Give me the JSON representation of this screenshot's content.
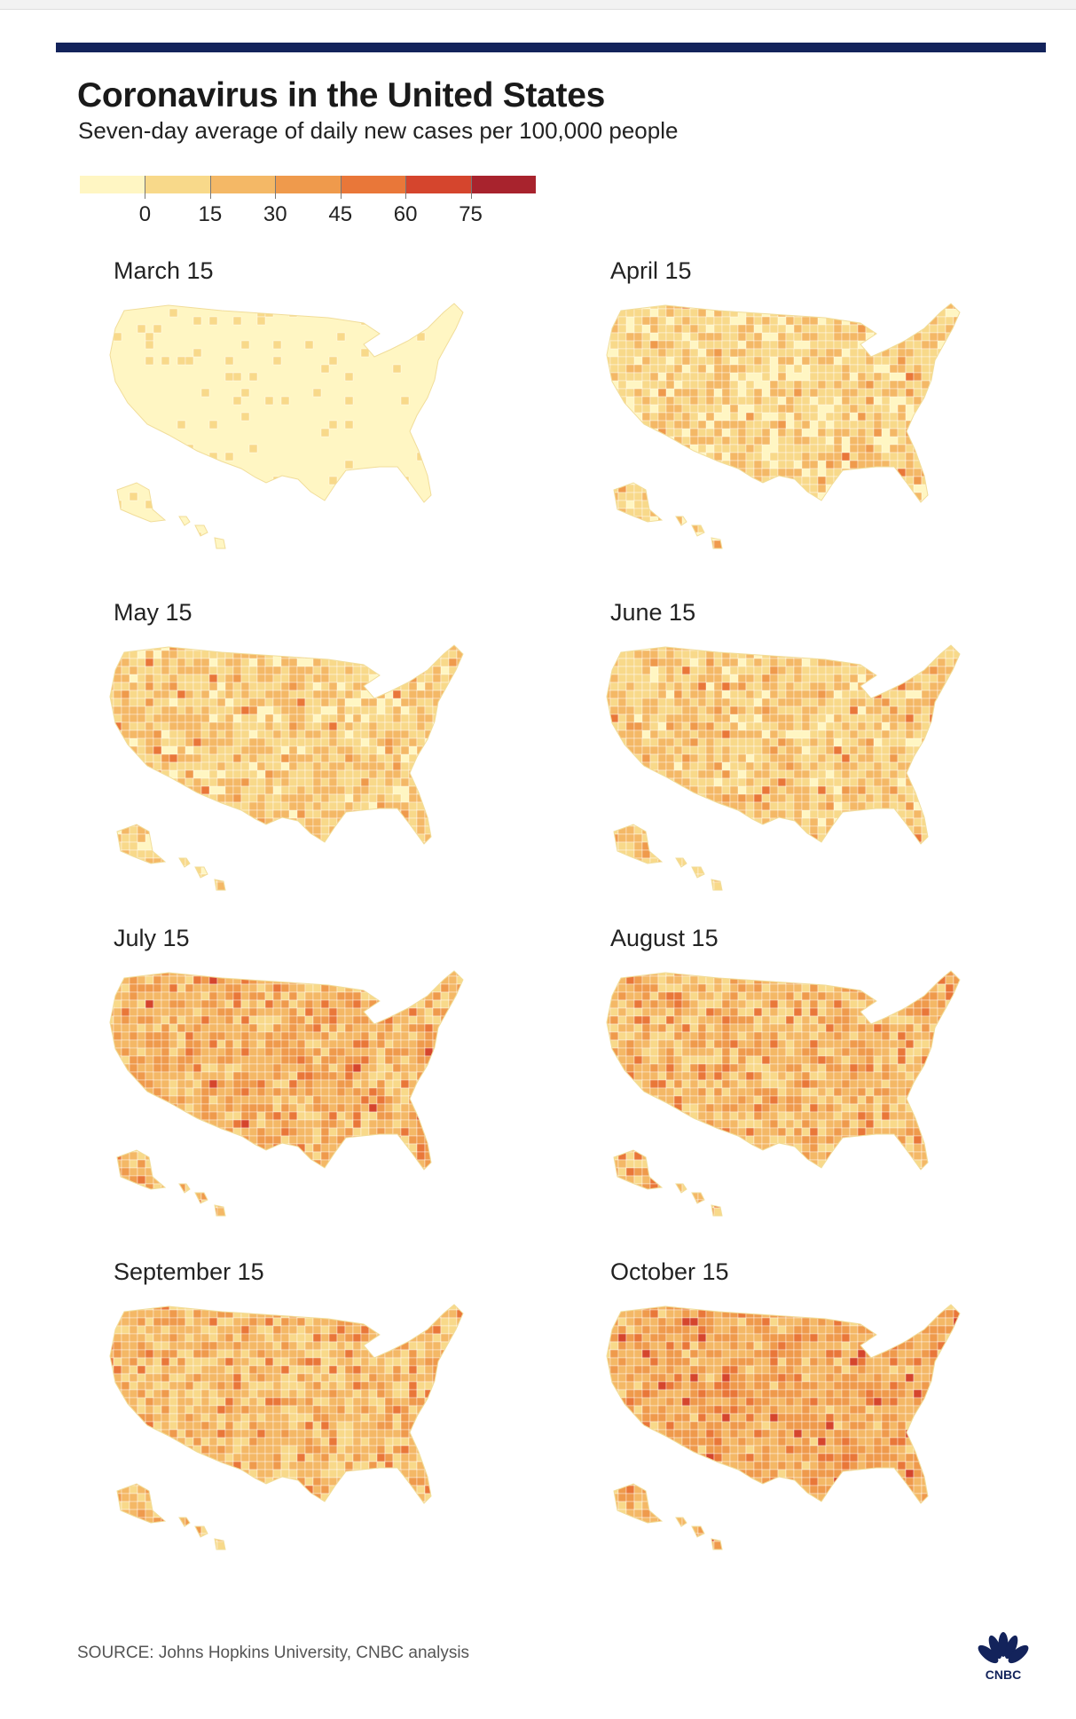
{
  "title": "Coronavirus in the United States",
  "subtitle": "Seven-day average of daily new cases per 100,000 people",
  "legend": {
    "colors": [
      "#fff6c3",
      "#f8d98a",
      "#f4b866",
      "#ef9a4c",
      "#e97739",
      "#d5452d",
      "#a8232d"
    ],
    "labels": [
      "0",
      "15",
      "30",
      "45",
      "60",
      "75"
    ]
  },
  "panels": [
    {
      "label": "March 15",
      "intensity": 0.0
    },
    {
      "label": "April 15",
      "intensity": 0.25
    },
    {
      "label": "May 15",
      "intensity": 0.32
    },
    {
      "label": "June 15",
      "intensity": 0.34
    },
    {
      "label": "July 15",
      "intensity": 0.62
    },
    {
      "label": "August 15",
      "intensity": 0.55
    },
    {
      "label": "September 15",
      "intensity": 0.52
    },
    {
      "label": "October 15",
      "intensity": 0.72
    }
  ],
  "source": "SOURCE: Johns Hopkins University, CNBC analysis",
  "logo": {
    "text": "CNBC",
    "icon": "peacock-icon"
  }
}
